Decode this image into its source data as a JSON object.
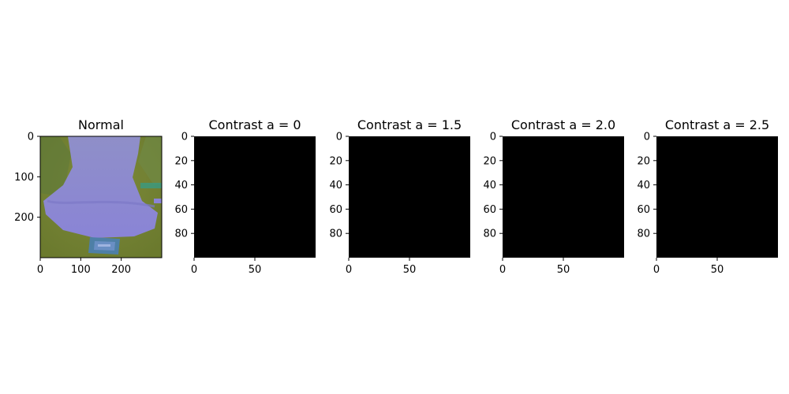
{
  "chart_data": [
    {
      "type": "image",
      "title": "Normal",
      "x_ticks": [
        0,
        100,
        200
      ],
      "y_ticks": [
        0,
        100,
        200
      ],
      "xlim": [
        0,
        300
      ],
      "ylim": [
        300,
        0
      ],
      "content": "photo of a neck and collar with a small label tag, shown with shifted colours"
    },
    {
      "type": "image",
      "title": "Contrast a = 0",
      "x_ticks": [
        0,
        50
      ],
      "y_ticks": [
        0,
        20,
        40,
        60,
        80
      ],
      "xlim": [
        0,
        100
      ],
      "ylim": [
        100,
        0
      ],
      "fill": "#000000"
    },
    {
      "type": "image",
      "title": "Contrast a = 1.5",
      "x_ticks": [
        0,
        50
      ],
      "y_ticks": [
        0,
        20,
        40,
        60,
        80
      ],
      "xlim": [
        0,
        100
      ],
      "ylim": [
        100,
        0
      ],
      "fill": "#000000"
    },
    {
      "type": "image",
      "title": "Contrast a = 2.0",
      "x_ticks": [
        0,
        50
      ],
      "y_ticks": [
        0,
        20,
        40,
        60,
        80
      ],
      "xlim": [
        0,
        100
      ],
      "ylim": [
        100,
        0
      ],
      "fill": "#000000"
    },
    {
      "type": "image",
      "title": "Contrast a = 2.5",
      "x_ticks": [
        0,
        50
      ],
      "y_ticks": [
        0,
        20,
        40,
        60,
        80
      ],
      "xlim": [
        0,
        100
      ],
      "ylim": [
        100,
        0
      ],
      "fill": "#000000"
    }
  ]
}
